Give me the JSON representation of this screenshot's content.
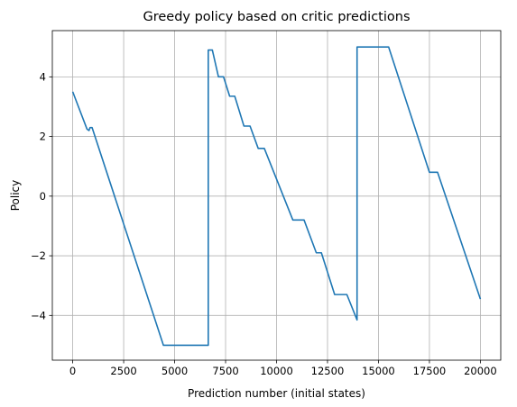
{
  "chart_data": {
    "type": "line",
    "title": "Greedy policy based on critic predictions",
    "xlabel": "Prediction number (initial states)",
    "ylabel": "Policy",
    "xlim": [
      -1000,
      21000
    ],
    "ylim": [
      -5.5,
      5.55
    ],
    "xticks": [
      0,
      2500,
      5000,
      7500,
      10000,
      12500,
      15000,
      17500,
      20000
    ],
    "xtick_labels": [
      "0",
      "2500",
      "5000",
      "7500",
      "10000",
      "12500",
      "15000",
      "17500",
      "20000"
    ],
    "yticks": [
      -4,
      -2,
      0,
      2,
      4
    ],
    "ytick_labels": [
      "−4",
      "−2",
      "0",
      "2",
      "4"
    ],
    "grid": true,
    "colors": {
      "line": "#1f77b4",
      "grid": "#b0b0b0",
      "axes": "#000000"
    },
    "series": [
      {
        "values": [
          [
            0,
            3.5
          ],
          [
            700,
            2.25
          ],
          [
            800,
            2.2
          ],
          [
            850,
            2.3
          ],
          [
            950,
            2.3
          ],
          [
            4450,
            -5.0
          ],
          [
            6650,
            -5.0
          ],
          [
            6650,
            4.9
          ],
          [
            6850,
            4.9
          ],
          [
            7150,
            4.0
          ],
          [
            7400,
            4.0
          ],
          [
            7700,
            3.35
          ],
          [
            7950,
            3.35
          ],
          [
            8400,
            2.35
          ],
          [
            8700,
            2.35
          ],
          [
            9100,
            1.6
          ],
          [
            9400,
            1.6
          ],
          [
            10800,
            -0.8
          ],
          [
            11350,
            -0.8
          ],
          [
            11950,
            -1.9
          ],
          [
            12200,
            -1.9
          ],
          [
            12850,
            -3.3
          ],
          [
            13450,
            -3.3
          ],
          [
            13950,
            -4.15
          ],
          [
            13950,
            5.0
          ],
          [
            15500,
            5.0
          ],
          [
            17500,
            0.8
          ],
          [
            17900,
            0.8
          ],
          [
            20000,
            -3.45
          ]
        ]
      }
    ]
  }
}
